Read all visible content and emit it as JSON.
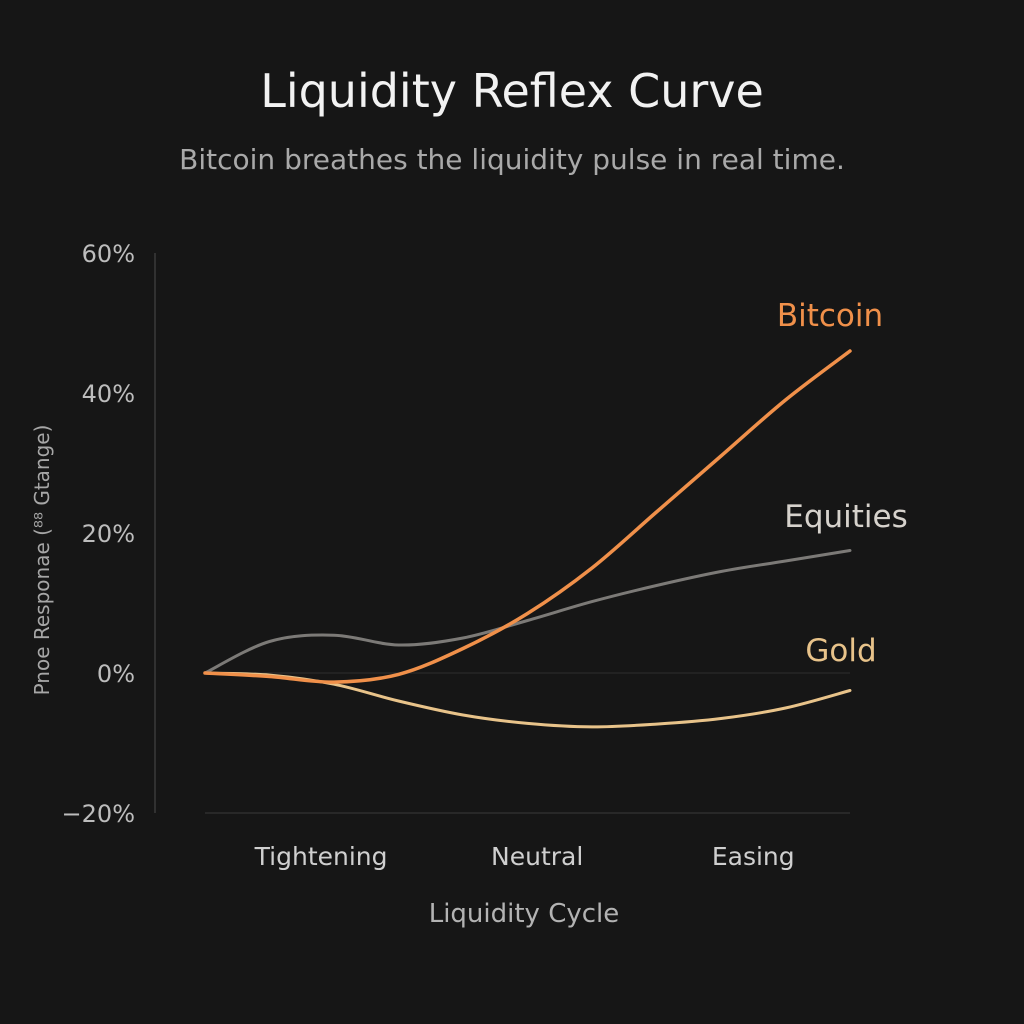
{
  "chart_data": {
    "type": "line",
    "title": "Liquidity Reflex Curve",
    "subtitle": "Bitcoin breathes the liquidity pulse in real time.",
    "xlabel": "Liquidity Cycle",
    "ylabel": "Pnoe Responae (⁸⁸ Gtange)",
    "categories": [
      "Tightening",
      "Neutral",
      "Easing"
    ],
    "x": [
      0,
      0.1,
      0.2,
      0.3,
      0.4,
      0.5,
      0.6,
      0.7,
      0.8,
      0.9,
      1
    ],
    "yticks": [
      "60%",
      "40%",
      "20%",
      "0%",
      "−20%"
    ],
    "ytick_values": [
      60,
      40,
      20,
      0,
      -20
    ],
    "ylim": [
      -20,
      60
    ],
    "grid": false,
    "series": [
      {
        "name": "Bitcoin",
        "color": "#f0904a",
        "values": [
          0,
          -0.5,
          -1.3,
          -0.2,
          3.5,
          8.5,
          15,
          23,
          31,
          39,
          46
        ]
      },
      {
        "name": "Equities",
        "color": "#7c7a77",
        "values": [
          0,
          4.5,
          5.4,
          4,
          5,
          7.5,
          10.2,
          12.5,
          14.5,
          16,
          17.5
        ]
      },
      {
        "name": "Gold",
        "color": "#e8c38a",
        "values": [
          0,
          -0.3,
          -1.6,
          -4,
          -6,
          -7.2,
          -7.7,
          -7.3,
          -6.5,
          -5,
          -2.5
        ]
      }
    ]
  }
}
